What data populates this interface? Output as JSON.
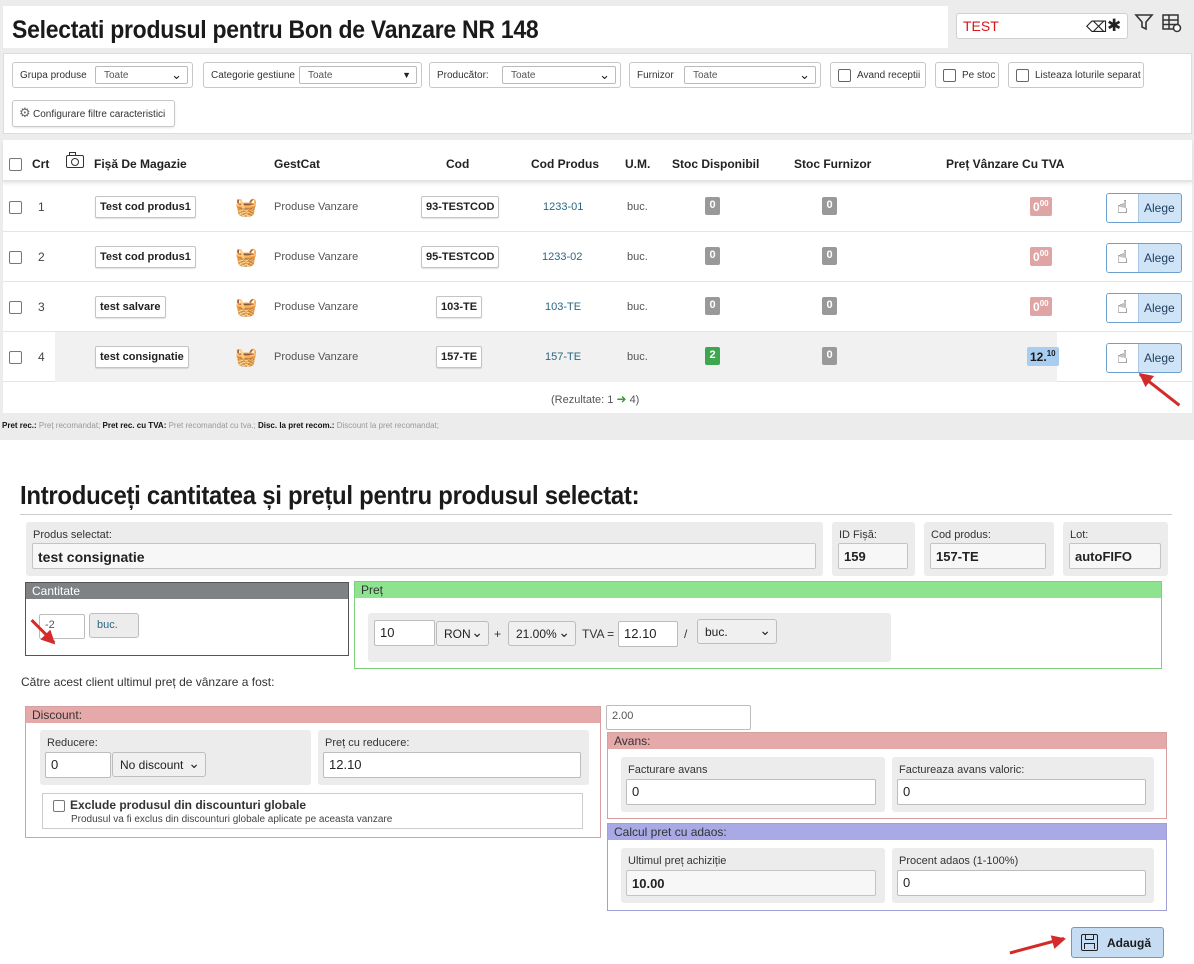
{
  "header": {
    "title": "Selectati produsul pentru Bon de Vanzare NR 148",
    "search_value": "TEST"
  },
  "filters": {
    "grupa": {
      "label": "Grupa produse",
      "value": "Toate"
    },
    "categorie": {
      "label": "Categorie gestiune",
      "value": "Toate"
    },
    "producator": {
      "label": "Producător:",
      "value": "Toate"
    },
    "furnizor": {
      "label": "Furnizor",
      "value": "Toate"
    },
    "avand_receptii": "Avand receptii",
    "pe_stoc": "Pe stoc",
    "listeaza_loturi": "Listeaza loturile separat",
    "configurare": "Configurare filtre caracteristici"
  },
  "table": {
    "headers": {
      "crt": "Crt",
      "fisa": "Fișă De Magazie",
      "gestcat": "GestCat",
      "cod": "Cod",
      "cod_produs": "Cod Produs",
      "um": "U.M.",
      "stoc_disp": "Stoc Disponibil",
      "stoc_furn": "Stoc Furnizor",
      "pret": "Preț Vânzare Cu TVA"
    },
    "rows": [
      {
        "crt": "1",
        "fisa": "Test cod produs1",
        "gestcat": "Produse Vanzare",
        "cod": "93-TESTCOD",
        "cod_produs": "1233-01",
        "um": "buc.",
        "stoc_disp": "0",
        "stoc_furn": "0",
        "pret_int": "0",
        "pret_dec": "00",
        "action": "Alege"
      },
      {
        "crt": "2",
        "fisa": "Test cod produs1",
        "gestcat": "Produse Vanzare",
        "cod": "95-TESTCOD",
        "cod_produs": "1233-02",
        "um": "buc.",
        "stoc_disp": "0",
        "stoc_furn": "0",
        "pret_int": "0",
        "pret_dec": "00",
        "action": "Alege"
      },
      {
        "crt": "3",
        "fisa": "test salvare",
        "gestcat": "Produse Vanzare",
        "cod": "103-TE",
        "cod_produs": "103-TE",
        "um": "buc.",
        "stoc_disp": "0",
        "stoc_furn": "0",
        "pret_int": "0",
        "pret_dec": "00",
        "action": "Alege"
      },
      {
        "crt": "4",
        "fisa": "test consignatie",
        "gestcat": "Produse Vanzare",
        "cod": "157-TE",
        "cod_produs": "157-TE",
        "um": "buc.",
        "stoc_disp": "2",
        "stoc_furn": "0",
        "pret_int": "12.",
        "pret_dec": "10",
        "action": "Alege"
      }
    ],
    "results_prefix": "(Rezultate: 1",
    "results_suffix": "4)"
  },
  "legend": {
    "k1": "Pret rec.:",
    "v1": " Preț recomandat; ",
    "k2": "Pret rec. cu TVA:",
    "v2": " Pret recomandat cu tva.; ",
    "k3": "Disc. la pret recom.:",
    "v3": " Discount la pret recomandat;"
  },
  "form": {
    "title": "Introduceți cantitatea și prețul pentru produsul selectat:",
    "produs_selectat": {
      "label": "Produs selectat:",
      "value": "test consignatie"
    },
    "id_fisa": {
      "label": "ID Fișă:",
      "value": "159"
    },
    "cod_produs": {
      "label": "Cod produs:",
      "value": "157-TE"
    },
    "lot": {
      "label": "Lot:",
      "value": "autoFIFO"
    },
    "cantitate": {
      "header": "Cantitate",
      "value": "-2",
      "unit": "buc."
    },
    "pret": {
      "header": "Preț",
      "value": "10",
      "currency": "RON",
      "plus": "+",
      "tva_rate": "21.00%",
      "tva_label": "TVA =",
      "tva_total": "12.10",
      "slash": "/",
      "unit": "buc."
    },
    "last_price_text": "Către acest client ultimul preț de vânzare a fost:",
    "last_price_value": "2.00",
    "discount": {
      "header": "Discount:",
      "reducere_label": "Reducere:",
      "reducere_value": "0",
      "type": "No discount",
      "pret_reducere_label": "Preț cu reducere:",
      "pret_reducere_value": "12.10",
      "exclude_title": "Exclude produsul din discounturi globale",
      "exclude_desc": "Produsul va fi exclus din discounturi globale aplicate pe aceasta vanzare"
    },
    "avans": {
      "header": "Avans:",
      "facturare_label": "Facturare avans",
      "facturare_value": "0",
      "valoric_label": "Factureaza avans valoric:",
      "valoric_value": "0"
    },
    "adaos": {
      "header": "Calcul pret cu adaos:",
      "ultim_label": "Ultimul preț achiziție",
      "ultim_value": "10.00",
      "procent_label": "Procent adaos (1-100%)",
      "procent_value": "0"
    },
    "submit": "Adaugă"
  },
  "colors": {
    "accent": "#cfe4f7",
    "pret_header": "#8ee38e",
    "discount_header": "#e5a9a9",
    "avans_header": "#e5a9a9",
    "adaos_header": "#a9a9e5",
    "cantitate_header": "#7e8285",
    "search_text": "#d9141a",
    "arrow": "#d42a2a"
  }
}
